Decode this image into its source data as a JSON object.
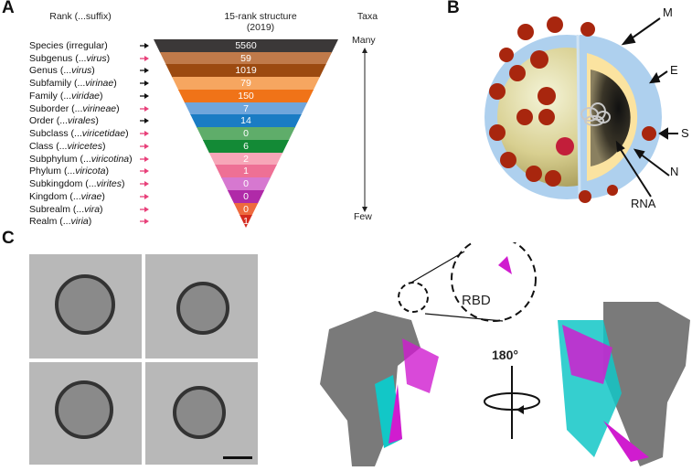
{
  "panel_a": {
    "letter": "A",
    "rank_header": "Rank (...suffix)",
    "structure_header_line1": "15-rank structure",
    "structure_header_line2": "(2019)",
    "taxa_header": "Taxa",
    "taxa_top": "Many",
    "taxa_bottom": "Few",
    "ranks": [
      {
        "name": "Species",
        "suffix": "(irregular)",
        "suffix_italic": false,
        "arrow_color": "#111111",
        "count": "5560",
        "band_color": "#3b3838"
      },
      {
        "name": "Subgenus",
        "suffix": "virus",
        "suffix_italic": true,
        "arrow_color": "#e8407a",
        "count": "59",
        "band_color": "#c07a4a"
      },
      {
        "name": "Genus",
        "suffix": "virus",
        "suffix_italic": true,
        "arrow_color": "#111111",
        "count": "1019",
        "band_color": "#9c4a10"
      },
      {
        "name": "Subfamily",
        "suffix": "virinae",
        "suffix_italic": true,
        "arrow_color": "#111111",
        "count": "79",
        "band_color": "#f6a660"
      },
      {
        "name": "Family",
        "suffix": "viridae",
        "suffix_italic": true,
        "arrow_color": "#111111",
        "count": "150",
        "band_color": "#f07318"
      },
      {
        "name": "Suborder",
        "suffix": "virineae",
        "suffix_italic": true,
        "arrow_color": "#e8407a",
        "count": "7",
        "band_color": "#6fa6dc"
      },
      {
        "name": "Order",
        "suffix": "virales",
        "suffix_italic": true,
        "arrow_color": "#111111",
        "count": "14",
        "band_color": "#1a7cc4"
      },
      {
        "name": "Subclass",
        "suffix": "viricetidae",
        "suffix_italic": true,
        "arrow_color": "#e8407a",
        "count": "0",
        "band_color": "#5fad6a"
      },
      {
        "name": "Class",
        "suffix": "viricetes",
        "suffix_italic": true,
        "arrow_color": "#e8407a",
        "count": "6",
        "band_color": "#138a36"
      },
      {
        "name": "Subphylum",
        "suffix": "viricotina",
        "suffix_italic": true,
        "arrow_color": "#e8407a",
        "count": "2",
        "band_color": "#f7a6b8"
      },
      {
        "name": "Phylum",
        "suffix": "viricota",
        "suffix_italic": true,
        "arrow_color": "#e8407a",
        "count": "1",
        "band_color": "#ee7095"
      },
      {
        "name": "Subkingdom",
        "suffix": "virites",
        "suffix_italic": true,
        "arrow_color": "#e8407a",
        "count": "0",
        "band_color": "#d678d0"
      },
      {
        "name": "Kingdom",
        "suffix": "virae",
        "suffix_italic": true,
        "arrow_color": "#e8407a",
        "count": "0",
        "band_color": "#b02aa8"
      },
      {
        "name": "Subrealm",
        "suffix": "vira",
        "suffix_italic": true,
        "arrow_color": "#e8407a",
        "count": "0",
        "band_color": "#ee6a3e"
      },
      {
        "name": "Realm",
        "suffix": "viria",
        "suffix_italic": true,
        "arrow_color": "#e8407a",
        "count": "1",
        "band_color": "#d42a1e"
      }
    ]
  },
  "panel_b": {
    "letter": "B",
    "labels": {
      "m": "M",
      "e": "E",
      "s": "S",
      "n": "N",
      "rna": "RNA"
    }
  },
  "panel_c": {
    "letter": "C",
    "rbd_label": "RBD",
    "rotation_label": "180°"
  },
  "colors": {
    "membrane": "#aed0ee",
    "nucleocapsid": "#fbe3a0",
    "spike": "#a8260e",
    "surface_grey": "#7a7a7a",
    "helix_cyan": "#12c7c7",
    "sheet_magenta": "#d01ccf"
  }
}
